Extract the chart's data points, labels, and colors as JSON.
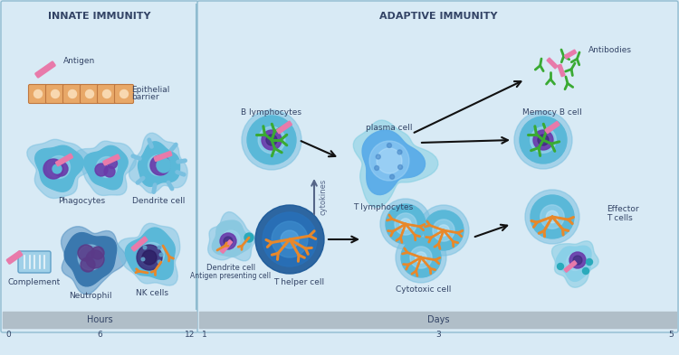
{
  "bg_color": "#d8eaf5",
  "innate_title": "INNATE IMMUNITY",
  "adaptive_title": "ADAPTIVE IMMUNITY",
  "hours_label": "Hours",
  "days_label": "Days",
  "hours_ticks": [
    "0",
    "6",
    "12"
  ],
  "days_ticks": [
    "1",
    "3",
    "5"
  ],
  "pink_rod": "#e87aaa",
  "green_receptor": "#3aaa33",
  "orange_receptor": "#e8882a",
  "teal_receptor": "#2aaabb",
  "text_color": "#334466",
  "epithelial_orange": "#e8a868",
  "epithelial_light": "#f8d8b0",
  "bar_color": "#b0bec8",
  "cell_outer": "#7ac0e0",
  "cell_inner": "#5aaad0",
  "cell_dark_blue": "#1a5898",
  "cell_nucleus_purple": "#6a3aaa",
  "cell_nucleus_dark": "#3a2a7a",
  "cell_light_blue": "#a8d8f0"
}
